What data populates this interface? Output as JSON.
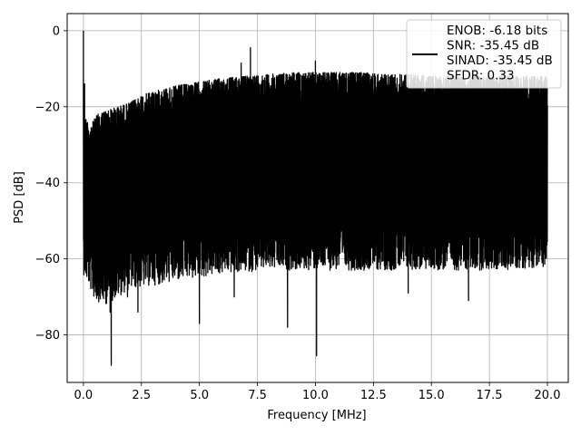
{
  "chart_data": {
    "type": "line",
    "xlabel": "Frequency [MHz]",
    "ylabel": "PSD [dB]",
    "xlim": [
      -0.7,
      20.9
    ],
    "ylim": [
      -92.5,
      4.5
    ],
    "x_ticks": [
      0.0,
      2.5,
      5.0,
      7.5,
      10.0,
      12.5,
      15.0,
      17.5,
      20.0
    ],
    "x_tick_labels": [
      "0.0",
      "2.5",
      "5.0",
      "7.5",
      "10.0",
      "12.5",
      "15.0",
      "17.5",
      "20.0"
    ],
    "y_ticks": [
      0,
      -20,
      -40,
      -60,
      -80
    ],
    "y_tick_labels": [
      "0",
      "−20",
      "−40",
      "−60",
      "−80"
    ],
    "grid": true,
    "legend_position": "top-right",
    "series": [
      {
        "name": "ENOB: -6.18 bits\nSNR: -35.45 dB\nSINAD: -35.45 dB\nSFDR: 0.33",
        "color": "#000000",
        "upper_envelope": {
          "x": [
            0.0,
            0.3,
            0.6,
            1.0,
            1.5,
            2.0,
            2.5,
            3.0,
            4.0,
            5.0,
            6.0,
            7.0,
            8.0,
            9.0,
            10.0,
            11.0,
            12.0,
            13.0,
            14.0,
            15.0,
            16.0,
            17.0,
            18.0,
            19.0,
            20.0
          ],
          "y": [
            -22,
            -25,
            -22,
            -21,
            -20,
            -19,
            -17,
            -16,
            -14.5,
            -13.5,
            -12.5,
            -12,
            -11.5,
            -11,
            -11,
            -11,
            -11,
            -11.5,
            -11.5,
            -12,
            -12,
            -12,
            -12,
            -12,
            -12
          ]
        },
        "lower_envelope": {
          "x": [
            0.0,
            0.5,
            1.0,
            2.0,
            3.0,
            4.0,
            5.0,
            6.0,
            8.0,
            10.0,
            12.0,
            14.0,
            16.0,
            18.0,
            20.0
          ],
          "y": [
            -58,
            -65,
            -66,
            -62,
            -61,
            -60,
            -59,
            -58,
            -57,
            -57,
            -57,
            -57,
            -57,
            -57,
            -56
          ]
        },
        "peaks": [
          {
            "x": 0.0,
            "y": 0
          },
          {
            "x": 0.05,
            "y": -14
          },
          {
            "x": 6.8,
            "y": -8.5
          },
          {
            "x": 7.2,
            "y": -4.5
          },
          {
            "x": 10.0,
            "y": -8
          }
        ],
        "dips": [
          {
            "x": 1.2,
            "y": -88
          },
          {
            "x": 1.15,
            "y": -74
          },
          {
            "x": 2.35,
            "y": -74
          },
          {
            "x": 5.0,
            "y": -77
          },
          {
            "x": 6.5,
            "y": -70
          },
          {
            "x": 8.8,
            "y": -78
          },
          {
            "x": 10.05,
            "y": -85.5
          },
          {
            "x": 14.0,
            "y": -69
          },
          {
            "x": 16.6,
            "y": -71
          },
          {
            "x": 0.8,
            "y": -69
          },
          {
            "x": 1.9,
            "y": -70
          }
        ]
      }
    ]
  }
}
